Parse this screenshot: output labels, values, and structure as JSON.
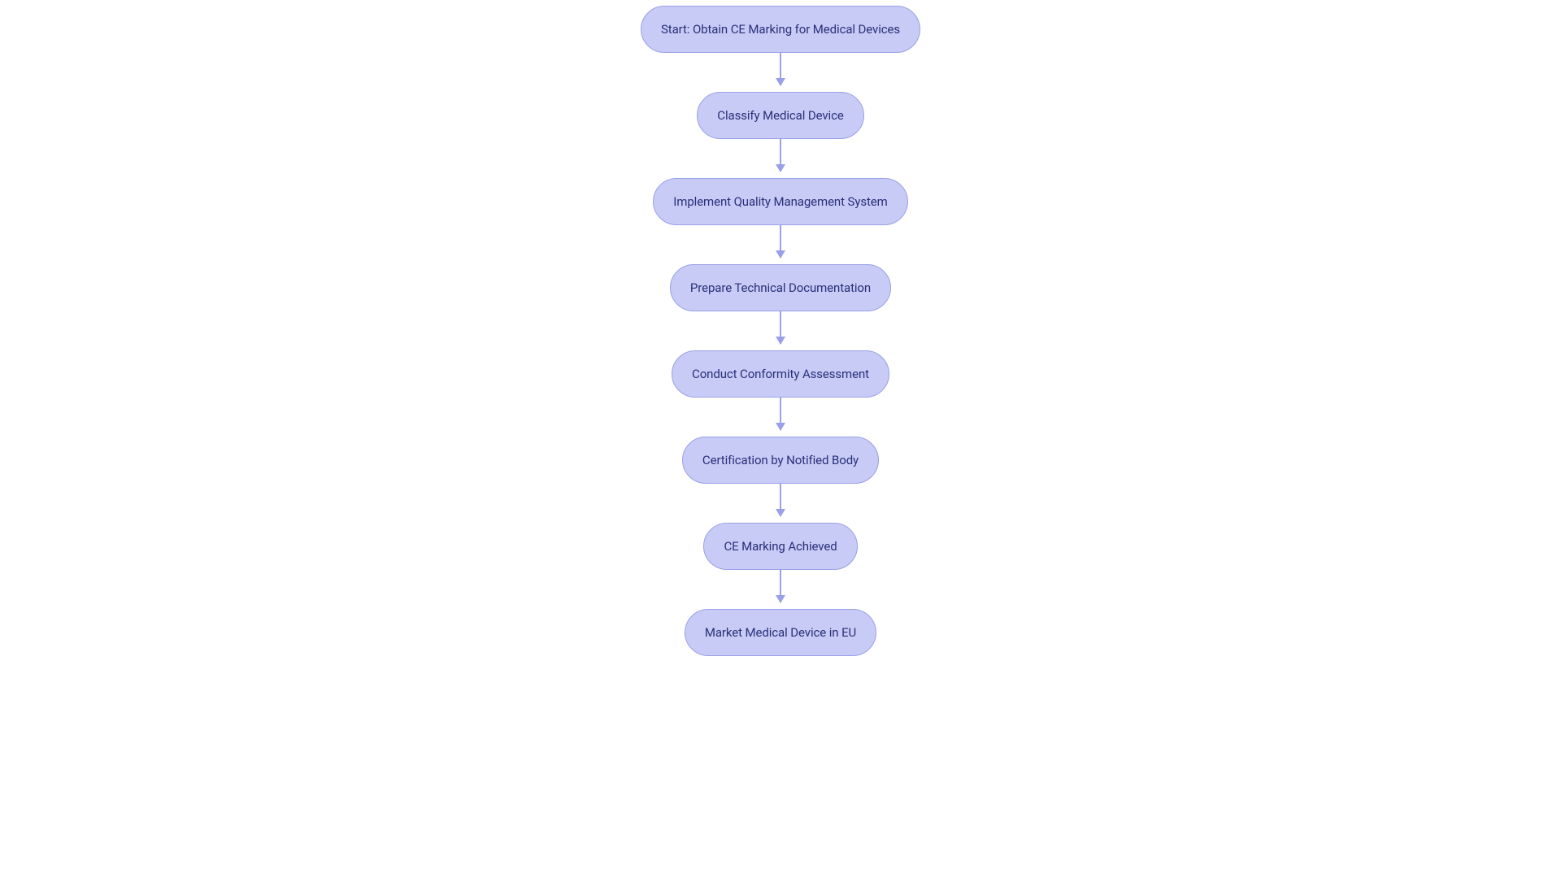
{
  "flowchart": {
    "type": "flowchart",
    "direction": "vertical",
    "background_color": "#ffffff",
    "node_style": {
      "fill_color": "#c7cbf5",
      "border_color": "#9aa0e8",
      "border_width": 1.5,
      "border_radius": 30,
      "text_color": "#2a2f7a",
      "font_size": 15,
      "font_weight": 400,
      "height": 58,
      "padding_x": 24
    },
    "edge_style": {
      "color": "#9aa0e8",
      "width": 1.5,
      "arrow_size": 10,
      "length": 40
    },
    "gap_after_arrow": 8,
    "nodes": [
      {
        "id": "start",
        "label": "Start: Obtain CE Marking for Medical Devices"
      },
      {
        "id": "classify",
        "label": "Classify Medical Device"
      },
      {
        "id": "qms",
        "label": "Implement Quality Management System"
      },
      {
        "id": "techdoc",
        "label": "Prepare Technical Documentation"
      },
      {
        "id": "conformity",
        "label": "Conduct Conformity Assessment"
      },
      {
        "id": "certification",
        "label": "Certification by Notified Body"
      },
      {
        "id": "ce",
        "label": "CE Marking Achieved"
      },
      {
        "id": "market",
        "label": "Market Medical Device in EU"
      }
    ],
    "edges": [
      {
        "from": "start",
        "to": "classify"
      },
      {
        "from": "classify",
        "to": "qms"
      },
      {
        "from": "qms",
        "to": "techdoc"
      },
      {
        "from": "techdoc",
        "to": "conformity"
      },
      {
        "from": "conformity",
        "to": "certification"
      },
      {
        "from": "certification",
        "to": "ce"
      },
      {
        "from": "ce",
        "to": "market"
      }
    ]
  }
}
